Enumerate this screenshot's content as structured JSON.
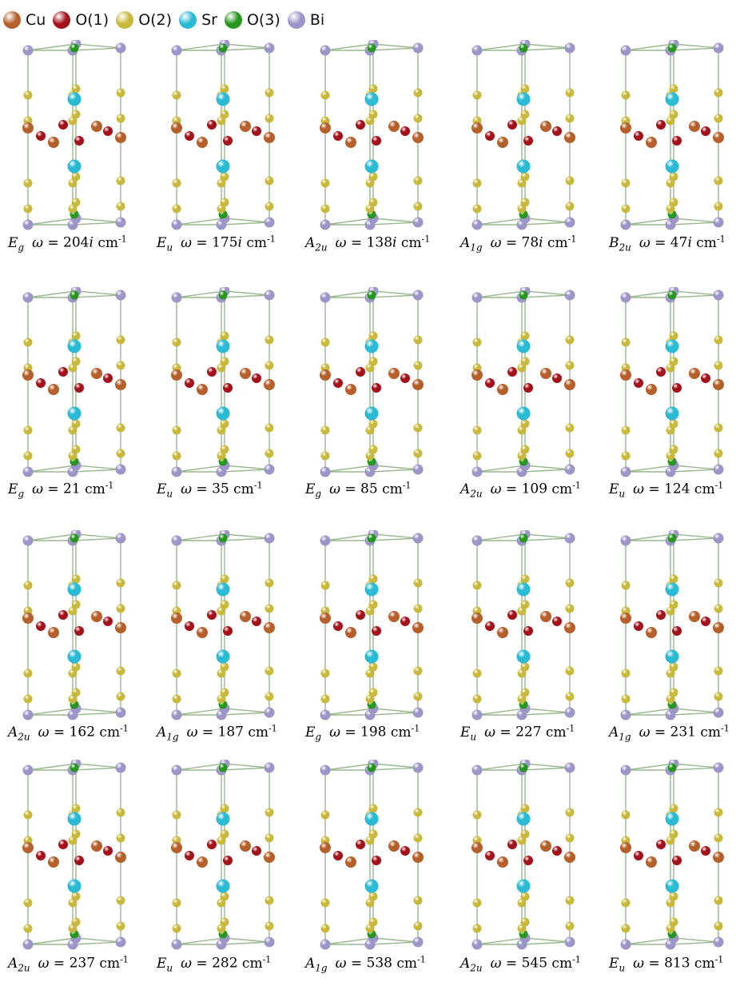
{
  "legend": [
    {
      "label": "Cu",
      "color": "#b5602a"
    },
    {
      "label": "O(1)",
      "color": "#a3121a"
    },
    {
      "label": "O(2)",
      "color": "#c8b83c"
    },
    {
      "label": "Sr",
      "color": "#2bbad4"
    },
    {
      "label": "O(3)",
      "color": "#27961f"
    },
    {
      "label": "Bi",
      "color": "#9c96c8"
    }
  ],
  "panels": [
    {
      "mode_main": "E",
      "mode_sub": "g",
      "omega_prefix": "ω = ",
      "freq": "204",
      "imag": "i",
      "unit_base": " cm",
      "unit_sup": "-1"
    },
    {
      "mode_main": "E",
      "mode_sub": "u",
      "omega_prefix": "ω = ",
      "freq": "175",
      "imag": "i",
      "unit_base": " cm",
      "unit_sup": "-1"
    },
    {
      "mode_main": "A",
      "mode_sub": "2u",
      "omega_prefix": "ω = ",
      "freq": "138",
      "imag": "i",
      "unit_base": " cm",
      "unit_sup": "-1"
    },
    {
      "mode_main": "A",
      "mode_sub": "1g",
      "omega_prefix": "ω = ",
      "freq": "78",
      "imag": "i",
      "unit_base": " cm",
      "unit_sup": "-1"
    },
    {
      "mode_main": "B",
      "mode_sub": "2u",
      "omega_prefix": "ω = ",
      "freq": "47",
      "imag": "i",
      "unit_base": " cm",
      "unit_sup": "-1"
    },
    {
      "mode_main": "E",
      "mode_sub": "g",
      "omega_prefix": "ω = ",
      "freq": "21",
      "imag": "",
      "unit_base": " cm",
      "unit_sup": "-1"
    },
    {
      "mode_main": "E",
      "mode_sub": "u",
      "omega_prefix": "ω = ",
      "freq": "35",
      "imag": "",
      "unit_base": " cm",
      "unit_sup": "-1"
    },
    {
      "mode_main": "E",
      "mode_sub": "g",
      "omega_prefix": "ω = ",
      "freq": "85",
      "imag": "",
      "unit_base": " cm",
      "unit_sup": "-1"
    },
    {
      "mode_main": "A",
      "mode_sub": "2u",
      "omega_prefix": "ω = ",
      "freq": "109",
      "imag": "",
      "unit_base": " cm",
      "unit_sup": "-1"
    },
    {
      "mode_main": "E",
      "mode_sub": "u",
      "omega_prefix": "ω = ",
      "freq": "124",
      "imag": "",
      "unit_base": " cm",
      "unit_sup": "-1"
    },
    {
      "mode_main": "A",
      "mode_sub": "2u",
      "omega_prefix": "ω = ",
      "freq": "162",
      "imag": "",
      "unit_base": " cm",
      "unit_sup": "-1"
    },
    {
      "mode_main": "A",
      "mode_sub": "1g",
      "omega_prefix": "ω = ",
      "freq": "187",
      "imag": "",
      "unit_base": " cm",
      "unit_sup": "-1"
    },
    {
      "mode_main": "E",
      "mode_sub": "g",
      "omega_prefix": "ω = ",
      "freq": "198",
      "imag": "",
      "unit_base": " cm",
      "unit_sup": "-1"
    },
    {
      "mode_main": "E",
      "mode_sub": "u",
      "omega_prefix": "ω = ",
      "freq": "227",
      "imag": "",
      "unit_base": " cm",
      "unit_sup": "-1"
    },
    {
      "mode_main": "A",
      "mode_sub": "1g",
      "omega_prefix": "ω = ",
      "freq": "231",
      "imag": "",
      "unit_base": " cm",
      "unit_sup": "-1"
    },
    {
      "mode_main": "A",
      "mode_sub": "2u",
      "omega_prefix": "ω = ",
      "freq": "237",
      "imag": "",
      "unit_base": " cm",
      "unit_sup": "-1"
    },
    {
      "mode_main": "E",
      "mode_sub": "u",
      "omega_prefix": "ω = ",
      "freq": "282",
      "imag": "",
      "unit_base": " cm",
      "unit_sup": "-1"
    },
    {
      "mode_main": "A",
      "mode_sub": "1g",
      "omega_prefix": "ω = ",
      "freq": "538",
      "imag": "",
      "unit_base": " cm",
      "unit_sup": "-1"
    },
    {
      "mode_main": "A",
      "mode_sub": "2u",
      "omega_prefix": "ω = ",
      "freq": "545",
      "imag": "",
      "unit_base": " cm",
      "unit_sup": "-1"
    },
    {
      "mode_main": "E",
      "mode_sub": "u",
      "omega_prefix": "ω = ",
      "freq": "813",
      "imag": "",
      "unit_base": " cm",
      "unit_sup": "-1"
    }
  ]
}
